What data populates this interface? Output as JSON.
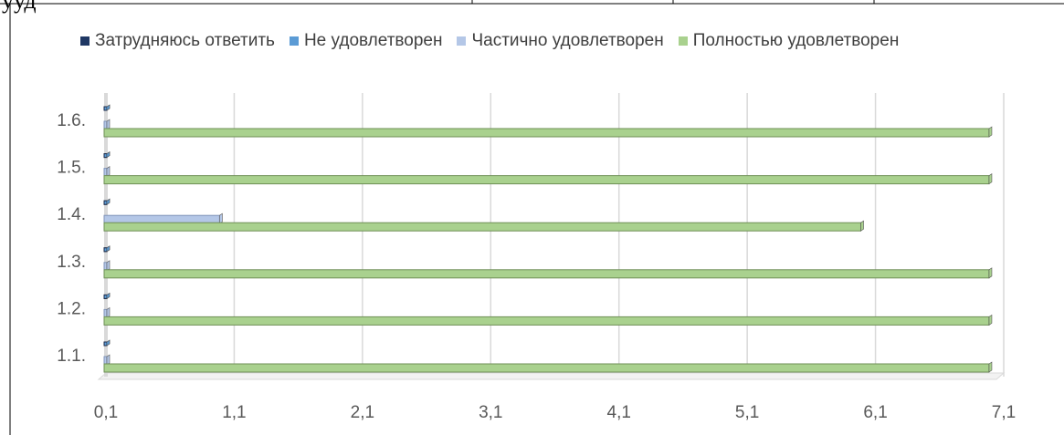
{
  "header_fragment": "ууд",
  "chart_data": {
    "type": "bar",
    "orientation": "horizontal",
    "categories": [
      "1.1.",
      "1.2.",
      "1.3.",
      "1.4.",
      "1.5.",
      "1.6."
    ],
    "series": [
      {
        "name": "Затрудняюсь ответить",
        "color": "#1f3864",
        "values": [
          0.1,
          0.1,
          0.1,
          0.1,
          0.1,
          0.1
        ]
      },
      {
        "name": "Не удовлетворен",
        "color": "#5b9bd5",
        "values": [
          0.1,
          0.1,
          0.1,
          0.1,
          0.1,
          0.1
        ]
      },
      {
        "name": "Частично удовлетворен",
        "color": "#b4c7e7",
        "values": [
          0.1,
          0.1,
          0.1,
          1.0,
          0.1,
          0.1
        ]
      },
      {
        "name": "Полностью удовлетворен",
        "color": "#a9d18e",
        "values": [
          7.0,
          7.0,
          7.0,
          6.0,
          7.0,
          7.0
        ]
      }
    ],
    "xticks": [
      "0,1",
      "1,1",
      "2,1",
      "3,1",
      "4,1",
      "5,1",
      "6,1",
      "7,1"
    ],
    "xlim": [
      0.1,
      7.1
    ],
    "grid": true,
    "legend_position": "top"
  }
}
